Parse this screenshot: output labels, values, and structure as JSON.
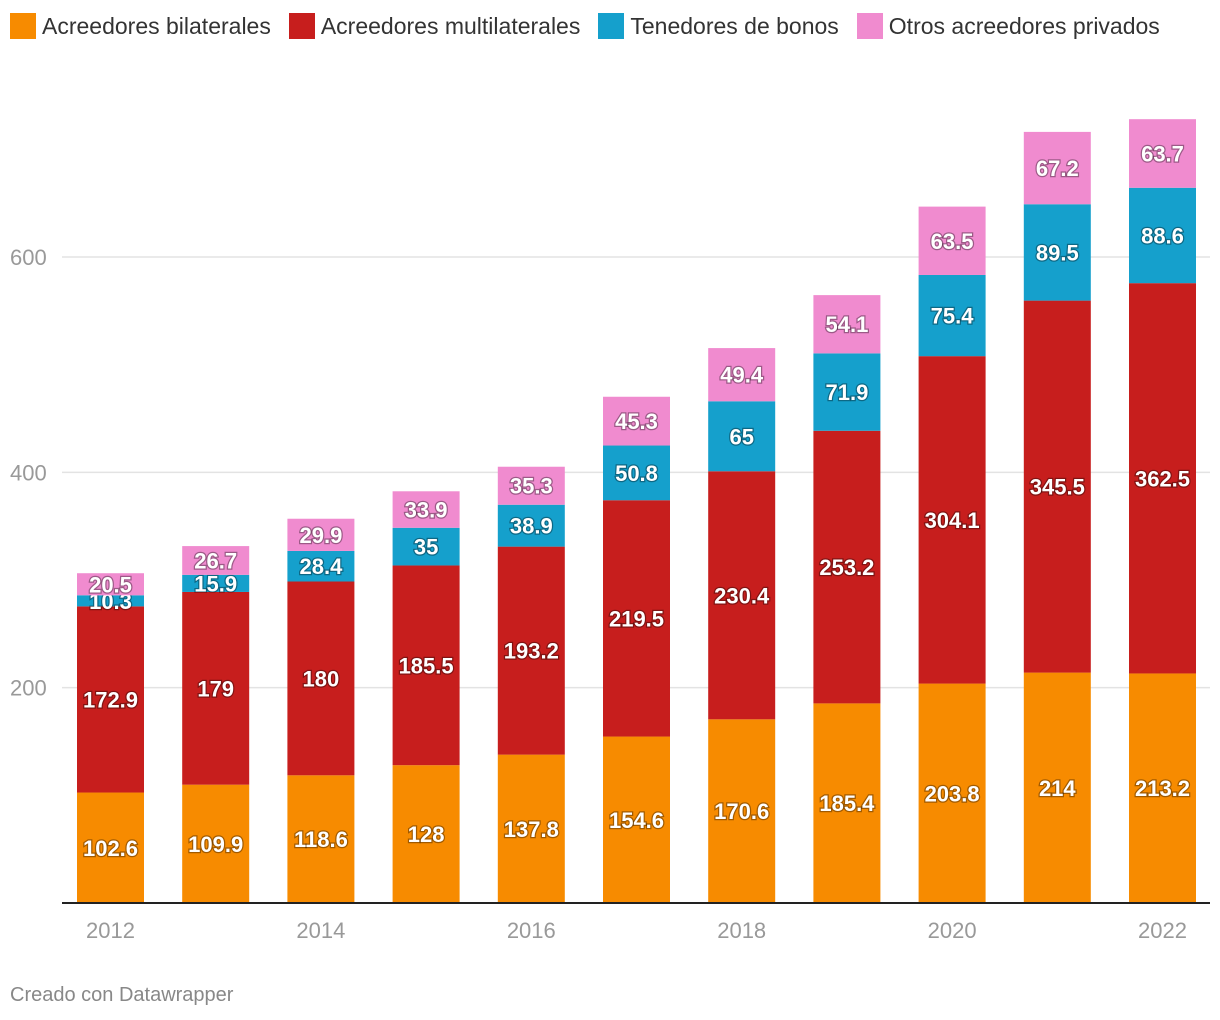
{
  "chart_data": {
    "type": "bar",
    "stacked": true,
    "categories": [
      "2012",
      "2013",
      "2014",
      "2015",
      "2016",
      "2017",
      "2018",
      "2019",
      "2020",
      "2021",
      "2022"
    ],
    "x_tick_labels": [
      "2012",
      "2014",
      "2016",
      "2018",
      "2020",
      "2022"
    ],
    "y_ticks": [
      200,
      400,
      600
    ],
    "ylim": [
      0,
      730
    ],
    "series": [
      {
        "name": "Acreedores bilaterales",
        "color": "#f78b00",
        "values": [
          102.6,
          109.9,
          118.6,
          128,
          137.8,
          154.6,
          170.6,
          185.4,
          203.8,
          214,
          213.2
        ]
      },
      {
        "name": "Acreedores multilaterales",
        "color": "#c71e1d",
        "values": [
          172.9,
          179,
          180,
          185.5,
          193.2,
          219.5,
          230.4,
          253.2,
          304.1,
          345.5,
          362.5
        ]
      },
      {
        "name": "Tenedores de bonos",
        "color": "#15a0cc",
        "values": [
          10.3,
          15.9,
          28.4,
          35,
          38.9,
          50.8,
          65,
          71.9,
          75.4,
          89.5,
          88.6
        ]
      },
      {
        "name": "Otros acreedores privados",
        "color": "#f08bcf",
        "values": [
          20.5,
          26.7,
          29.9,
          33.9,
          35.3,
          45.3,
          49.4,
          54.1,
          63.5,
          67.2,
          63.7
        ]
      }
    ]
  },
  "footer": "Creado con Datawrapper"
}
